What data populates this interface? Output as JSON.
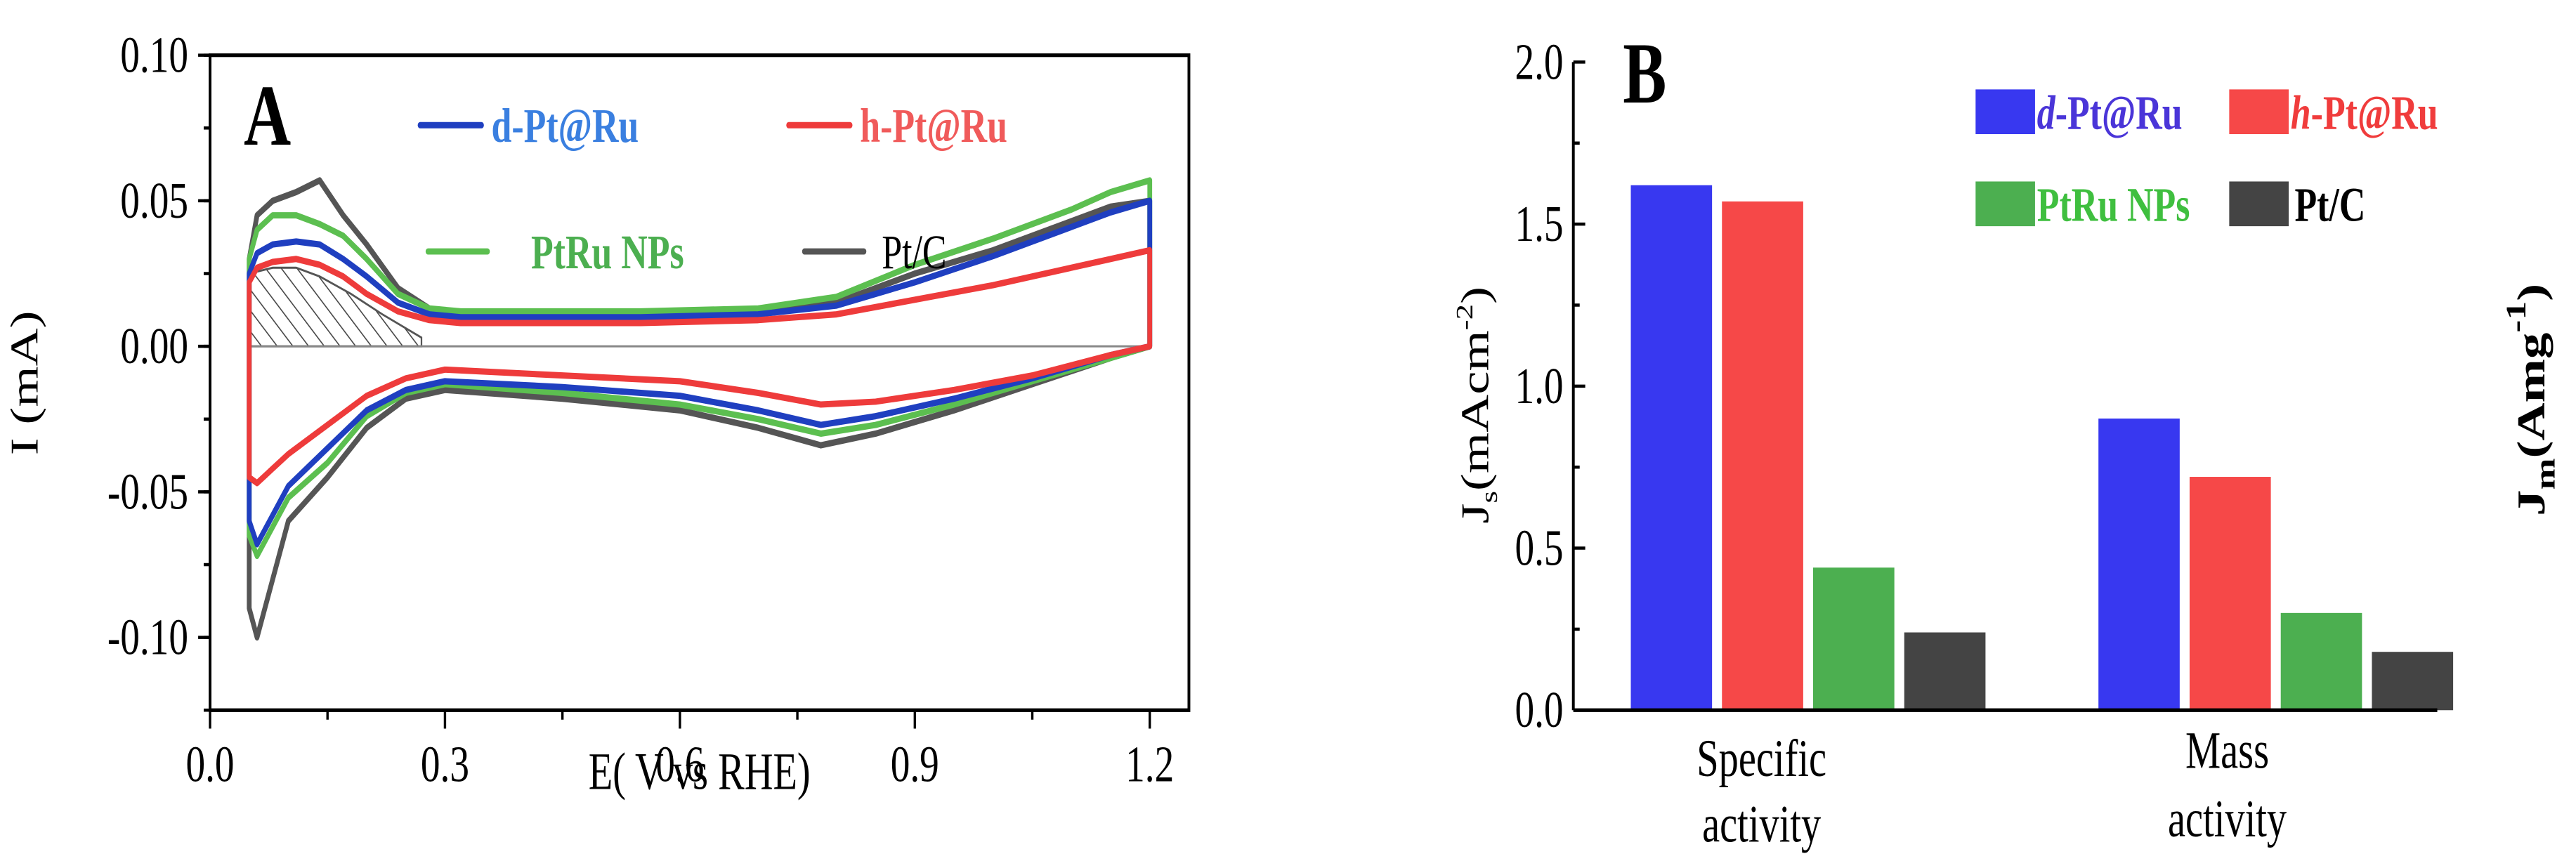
{
  "chart_data": [
    {
      "panel": "A",
      "type": "line",
      "xlabel": "E( V vs RHE)",
      "ylabel": "I (mA)",
      "xlim": [
        0.0,
        1.25
      ],
      "ylim": [
        -0.125,
        0.1
      ],
      "xticks": [
        "0.0",
        "0.3",
        "0.6",
        "0.9",
        "1.2"
      ],
      "yticks": [
        "0.10",
        "0.05",
        "0.00",
        "-0.05",
        "-0.10"
      ],
      "legend": [
        {
          "label": "d-Pt@Ru",
          "color": "#1f3fc0",
          "text_color": "#3a7fe0"
        },
        {
          "label": "h-Pt@Ru",
          "color": "#ee3b3b",
          "text_color": "#f05a5a"
        },
        {
          "label": "PtRu NPs",
          "color": "#5cbf50",
          "text_color": "#4caf50"
        },
        {
          "label": "Pt/C",
          "color": "#555555",
          "text_color": "#000000"
        }
      ],
      "annotation": "Shaded H-desorption region (hatched), 0.05–0.27 V",
      "series": [
        {
          "name": "Pt/C",
          "color": "#555555",
          "x": [
            0.05,
            0.05,
            0.06,
            0.08,
            0.11,
            0.14,
            0.17,
            0.2,
            0.24,
            0.28,
            0.32,
            0.4,
            0.55,
            0.7,
            0.8,
            0.9,
            1.0,
            1.1,
            1.15,
            1.2,
            1.2,
            1.15,
            1.05,
            0.95,
            0.85,
            0.78,
            0.7,
            0.6,
            0.45,
            0.3,
            0.25,
            0.2,
            0.15,
            0.1,
            0.08,
            0.06,
            0.05
          ],
          "y": [
            -0.09,
            0.03,
            0.045,
            0.05,
            0.053,
            0.057,
            0.045,
            0.035,
            0.02,
            0.013,
            0.01,
            0.01,
            0.01,
            0.012,
            0.015,
            0.025,
            0.033,
            0.043,
            0.048,
            0.05,
            0.0,
            -0.004,
            -0.013,
            -0.022,
            -0.03,
            -0.034,
            -0.028,
            -0.022,
            -0.018,
            -0.015,
            -0.018,
            -0.028,
            -0.045,
            -0.06,
            -0.08,
            -0.1,
            -0.09
          ]
        },
        {
          "name": "PtRu NPs",
          "color": "#5cbf50",
          "x": [
            0.05,
            0.05,
            0.06,
            0.08,
            0.11,
            0.14,
            0.17,
            0.2,
            0.24,
            0.28,
            0.32,
            0.4,
            0.55,
            0.7,
            0.8,
            0.9,
            1.0,
            1.1,
            1.15,
            1.2,
            1.2,
            1.15,
            1.05,
            0.95,
            0.85,
            0.78,
            0.7,
            0.6,
            0.45,
            0.3,
            0.25,
            0.2,
            0.15,
            0.1,
            0.08,
            0.06,
            0.05
          ],
          "y": [
            -0.065,
            0.03,
            0.04,
            0.045,
            0.045,
            0.042,
            0.038,
            0.03,
            0.018,
            0.013,
            0.012,
            0.012,
            0.012,
            0.013,
            0.017,
            0.028,
            0.037,
            0.047,
            0.053,
            0.057,
            0.0,
            -0.004,
            -0.012,
            -0.02,
            -0.027,
            -0.03,
            -0.025,
            -0.02,
            -0.016,
            -0.013,
            -0.016,
            -0.024,
            -0.04,
            -0.052,
            -0.062,
            -0.072,
            -0.065
          ]
        },
        {
          "name": "d-Pt@Ru",
          "color": "#1f3fc0",
          "x": [
            0.05,
            0.05,
            0.06,
            0.08,
            0.11,
            0.14,
            0.17,
            0.2,
            0.24,
            0.28,
            0.32,
            0.4,
            0.55,
            0.7,
            0.8,
            0.9,
            1.0,
            1.1,
            1.15,
            1.2,
            1.2,
            1.15,
            1.05,
            0.95,
            0.85,
            0.78,
            0.7,
            0.6,
            0.45,
            0.3,
            0.25,
            0.2,
            0.15,
            0.1,
            0.08,
            0.06,
            0.05
          ],
          "y": [
            -0.06,
            0.025,
            0.032,
            0.035,
            0.036,
            0.035,
            0.03,
            0.024,
            0.015,
            0.011,
            0.01,
            0.01,
            0.01,
            0.011,
            0.014,
            0.022,
            0.031,
            0.041,
            0.046,
            0.05,
            0.0,
            -0.003,
            -0.011,
            -0.018,
            -0.024,
            -0.027,
            -0.022,
            -0.017,
            -0.014,
            -0.012,
            -0.015,
            -0.022,
            -0.035,
            -0.048,
            -0.058,
            -0.068,
            -0.06
          ]
        },
        {
          "name": "h-Pt@Ru",
          "color": "#ee3b3b",
          "x": [
            0.05,
            0.05,
            0.06,
            0.08,
            0.11,
            0.14,
            0.17,
            0.2,
            0.24,
            0.28,
            0.32,
            0.4,
            0.55,
            0.7,
            0.8,
            0.9,
            1.0,
            1.1,
            1.15,
            1.2,
            1.2,
            1.15,
            1.05,
            0.95,
            0.85,
            0.78,
            0.7,
            0.6,
            0.45,
            0.3,
            0.25,
            0.2,
            0.15,
            0.1,
            0.08,
            0.06,
            0.05
          ],
          "y": [
            -0.045,
            0.022,
            0.027,
            0.029,
            0.03,
            0.028,
            0.024,
            0.018,
            0.012,
            0.009,
            0.008,
            0.008,
            0.008,
            0.009,
            0.011,
            0.016,
            0.021,
            0.027,
            0.03,
            0.033,
            0.0,
            -0.003,
            -0.01,
            -0.015,
            -0.019,
            -0.02,
            -0.016,
            -0.012,
            -0.01,
            -0.008,
            -0.011,
            -0.017,
            -0.027,
            -0.037,
            -0.042,
            -0.047,
            -0.045
          ]
        }
      ]
    },
    {
      "panel": "B",
      "type": "bar",
      "ylabel": "J_s (mAcm^-2)",
      "ylabel_main": "J",
      "ylabel_sub": "s",
      "ylabel_pre": "(mAcm",
      "ylabel_exp": "-2",
      "ylabel_post": ")",
      "ylabel_right": "J_m (Amg^-1)",
      "ylabel_right_main": "J",
      "ylabel_right_sub": "m",
      "ylabel_right_pre": "(Amg",
      "ylabel_right_exp": "-1",
      "ylabel_right_post": ")",
      "ylim": [
        0.0,
        2.0
      ],
      "yticks": [
        "0.0",
        "0.5",
        "1.0",
        "1.5",
        "2.0"
      ],
      "categories": [
        "Specific activity",
        "Mass activity"
      ],
      "category_lines": [
        [
          "Specific",
          "activity"
        ],
        [
          "Mass",
          "activity"
        ]
      ],
      "legend": [
        {
          "prefix": "d",
          "label": "-Pt@Ru",
          "color": "#3838f0",
          "text_color": "#4a35d8"
        },
        {
          "prefix": "h",
          "label": "-Pt@Ru",
          "color": "#f64848",
          "text_color": "#f03c3c"
        },
        {
          "prefix": "",
          "label": "PtRu NPs",
          "color": "#4caf50",
          "text_color": "#3fbf3f"
        },
        {
          "prefix": "",
          "label": "Pt/C",
          "color": "#444444",
          "text_color": "#000000"
        }
      ],
      "series": [
        {
          "name": "d-Pt@Ru",
          "color": "#3838f0",
          "values": [
            1.62,
            0.9
          ]
        },
        {
          "name": "h-Pt@Ru",
          "color": "#f64848",
          "values": [
            1.57,
            0.72
          ]
        },
        {
          "name": "PtRu NPs",
          "color": "#4caf50",
          "values": [
            0.44,
            0.3
          ]
        },
        {
          "name": "Pt/C",
          "color": "#444444",
          "values": [
            0.24,
            0.18
          ]
        }
      ]
    }
  ]
}
